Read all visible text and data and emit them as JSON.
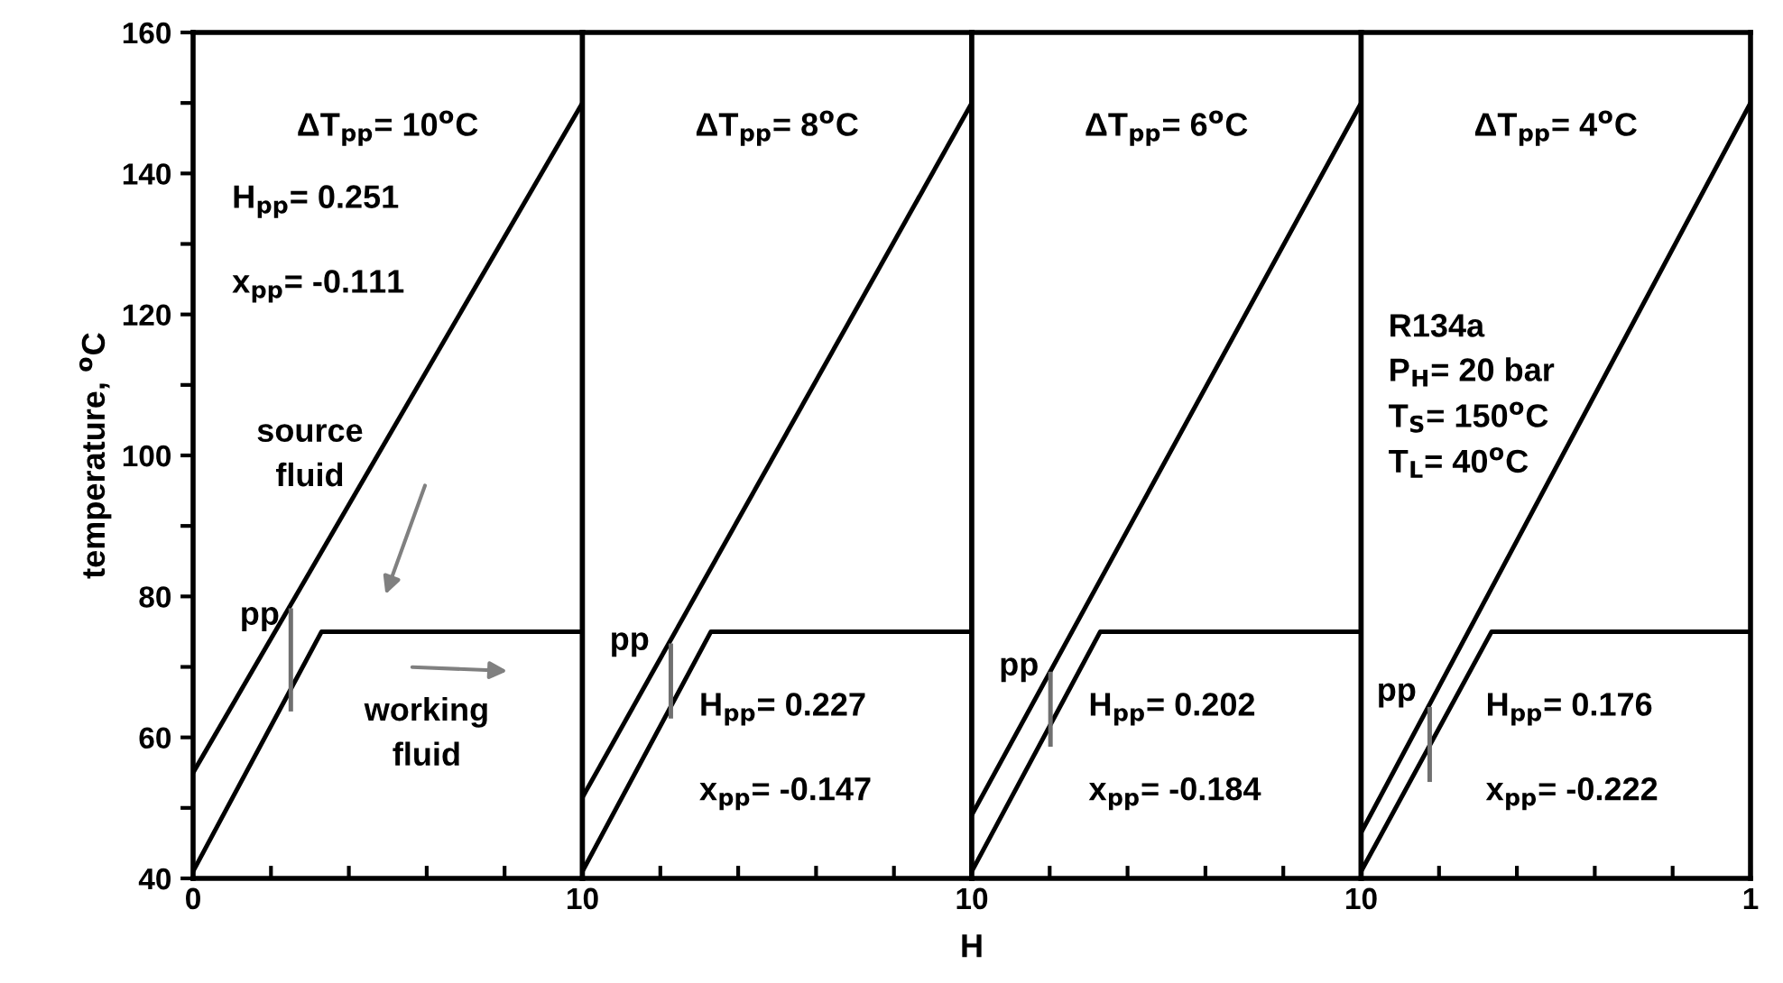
{
  "chart_data": [
    {
      "type": "line",
      "title": "ΔT$_{pp}$= 10$^{o}$C",
      "ylabel": "temperature, $^{o}$C",
      "xlim": [
        0,
        1
      ],
      "xticks": [
        0,
        {
          "value": 0.2,
          "label": null
        },
        {
          "value": 0.4,
          "label": null
        },
        {
          "value": 0.6,
          "label": null
        },
        {
          "value": 0.8,
          "label": null
        },
        1
      ],
      "ylim": [
        40,
        160
      ],
      "yticks": [
        40,
        {
          "value": 50,
          "label": null
        },
        60,
        {
          "value": 70,
          "label": null
        },
        80,
        {
          "value": 90,
          "label": null
        },
        100,
        {
          "value": 110,
          "label": null
        },
        120,
        {
          "value": 130,
          "label": null
        },
        140,
        {
          "value": 150,
          "label": null
        },
        160
      ],
      "marker": "none",
      "line_style": "solid",
      "annotations": [
        "H$_{pp}$= 0.251",
        "x$_{pp}$= -0.111",
        "source\nfluid",
        "working\nfluid",
        "pp"
      ],
      "series": [
        {
          "color": "#000000",
          "x": [
            0,
            1
          ],
          "values": [
            55,
            150
          ]
        },
        {
          "color": "#000000",
          "x": [
            0,
            0.33,
            1
          ],
          "values": [
            41,
            75,
            75
          ]
        },
        {
          "color": "#707070",
          "x": [
            0.251,
            0.251
          ],
          "values": [
            64,
            78
          ]
        }
      ]
    },
    {
      "type": "line",
      "title": "ΔT$_{pp}$= 8$^{o}$C",
      "xlabel": "H",
      "xlim": [
        0,
        1
      ],
      "xticks": [
        0,
        {
          "value": 0.2,
          "label": null
        },
        {
          "value": 0.4,
          "label": null
        },
        {
          "value": 0.6,
          "label": null
        },
        {
          "value": 0.8,
          "label": null
        },
        1
      ],
      "ylim": [
        40,
        160
      ],
      "tick_labels": "x",
      "marker": "none",
      "line_style": "solid",
      "annotations": [
        "H$_{pp}$= 0.227",
        "x$_{pp}$= -0.147",
        "pp"
      ],
      "series": [
        {
          "color": "#000000",
          "x": [
            0,
            1
          ],
          "values": [
            51.5,
            150
          ]
        },
        {
          "color": "#000000",
          "x": [
            0,
            0.33,
            1
          ],
          "values": [
            41,
            75,
            75
          ]
        },
        {
          "color": "#707070",
          "x": [
            0.227,
            0.227
          ],
          "values": [
            63,
            73
          ]
        }
      ]
    },
    {
      "type": "line",
      "title": "ΔT$_{pp}$= 6$^{o}$C",
      "xlim": [
        0,
        1
      ],
      "xticks": [
        0,
        {
          "value": 0.2,
          "label": null
        },
        {
          "value": 0.4,
          "label": null
        },
        {
          "value": 0.6,
          "label": null
        },
        {
          "value": 0.8,
          "label": null
        },
        1
      ],
      "ylim": [
        40,
        160
      ],
      "tick_labels": "x",
      "marker": "none",
      "line_style": "solid",
      "annotations": [
        "H$_{pp}$= 0.202",
        "x$_{pp}$= -0.184",
        "pp"
      ],
      "series": [
        {
          "color": "#000000",
          "x": [
            0,
            1
          ],
          "values": [
            49,
            150
          ]
        },
        {
          "color": "#000000",
          "x": [
            0,
            0.33,
            1
          ],
          "values": [
            41,
            75,
            75
          ]
        },
        {
          "color": "#707070",
          "x": [
            0.202,
            0.202
          ],
          "values": [
            59,
            69
          ]
        }
      ]
    },
    {
      "type": "line",
      "title": "ΔT$_{pp}$= 4$^{o}$C",
      "xlim": [
        0,
        1
      ],
      "xticks": [
        0,
        {
          "value": 0.2,
          "label": null
        },
        {
          "value": 0.4,
          "label": null
        },
        {
          "value": 0.6,
          "label": null
        },
        {
          "value": 0.8,
          "label": null
        },
        1
      ],
      "ylim": [
        40,
        160
      ],
      "tick_labels": "x",
      "marker": "none",
      "line_style": "solid",
      "annotations": [
        "H$_{pp}$= 0.176",
        "x$_{pp}$= -0.222",
        "pp",
        "R134a\nP$_{H}$= 20 bar\nT$_{S}$= 150$^{o}$C\nT$_{L}$= 40$^{o}$C"
      ],
      "series": [
        {
          "color": "#000000",
          "x": [
            0,
            1
          ],
          "values": [
            46.5,
            150
          ]
        },
        {
          "color": "#000000",
          "x": [
            0,
            0.335,
            1
          ],
          "values": [
            41,
            75,
            75
          ]
        },
        {
          "color": "#707070",
          "x": [
            0.176,
            0.176
          ],
          "values": [
            54,
            64
          ]
        }
      ]
    }
  ]
}
